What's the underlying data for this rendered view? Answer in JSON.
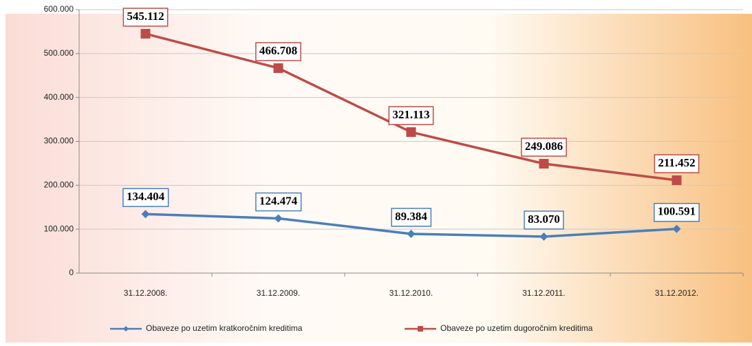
{
  "chart_data": {
    "type": "line",
    "categories": [
      "31.12.2008.",
      "31.12.2009.",
      "31.12.2010.",
      "31.12.2011.",
      "31.12.2012."
    ],
    "series": [
      {
        "name": "Obaveze po uzetim kratkoročnim kreditima",
        "color": "#4a7ebb",
        "marker": "diamond",
        "values": [
          134404,
          124474,
          89384,
          83070,
          100591
        ],
        "value_labels": [
          "134.404",
          "124.474",
          "89.384",
          "83.070",
          "100.591"
        ]
      },
      {
        "name": "Obaveze po uzetim dugoročnim kreditima",
        "color": "#be4b48",
        "marker": "square",
        "values": [
          545112,
          466708,
          321113,
          249086,
          211452
        ],
        "value_labels": [
          "545.112",
          "466.708",
          "321.113",
          "249.086",
          "211.452"
        ]
      }
    ],
    "ylim": [
      0,
      600000
    ],
    "yticks": [
      0,
      {
        "value": 100000,
        "label": "100.000"
      },
      {
        "value": 200000,
        "label": "200.000"
      },
      {
        "value": 300000,
        "label": "300.000"
      },
      {
        "value": 400000,
        "label": "400.000"
      },
      {
        "value": 500000,
        "label": "500.000"
      },
      {
        "value": 600000,
        "label": "600.000"
      }
    ],
    "grid": true,
    "legend": "bottom"
  }
}
